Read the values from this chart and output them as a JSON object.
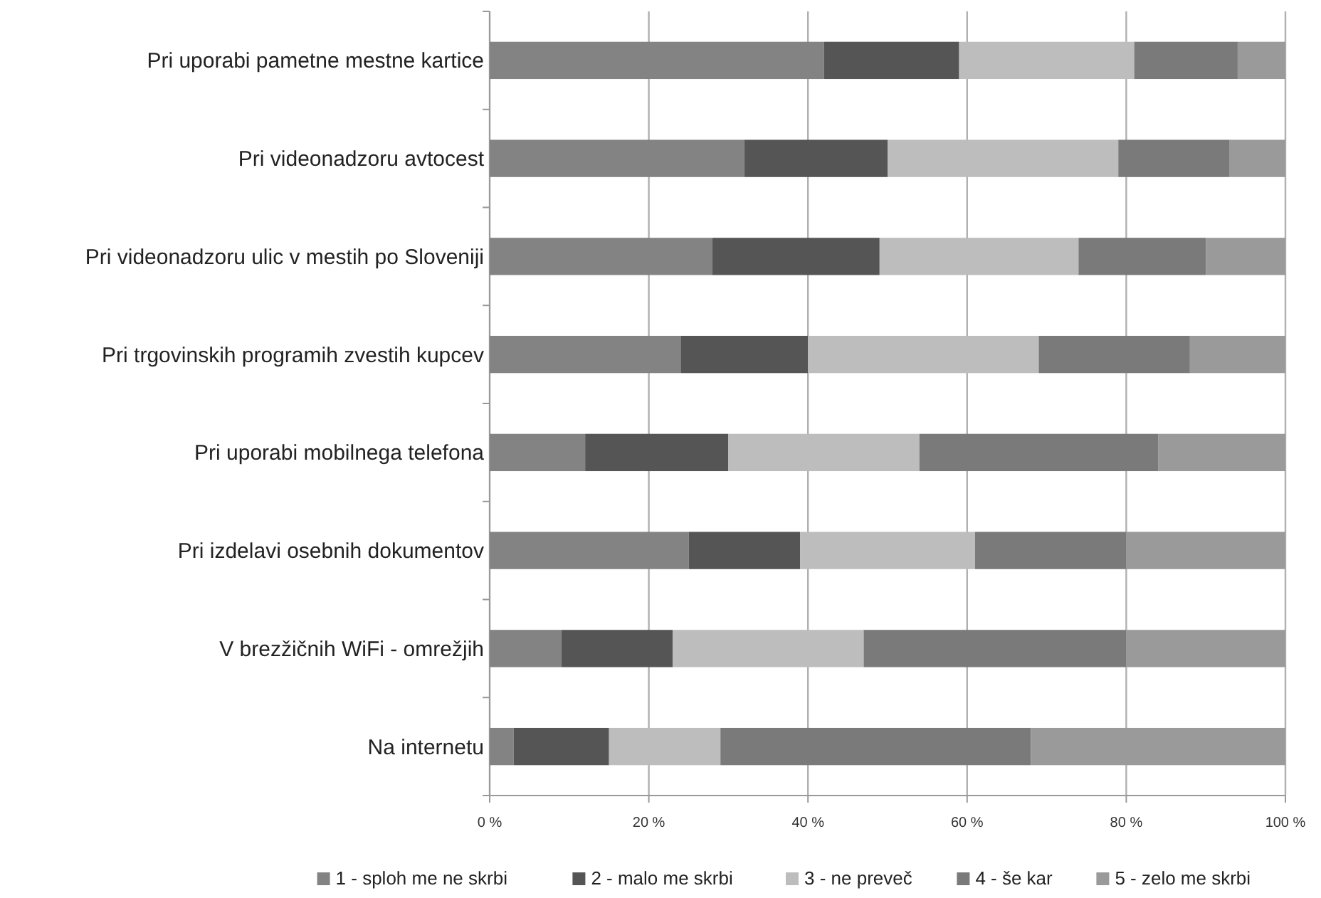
{
  "chart_data": {
    "type": "bar",
    "orientation": "horizontal",
    "stacked": true,
    "categories": [
      "Pri uporabi pametne mestne kartice",
      "Pri videonadzoru avtocest",
      "Pri videonadzoru ulic v mestih po Sloveniji",
      "Pri trgovinskih programih zvestih kupcev",
      "Pri uporabi mobilnega telefona",
      "Pri izdelavi osebnih dokumentov",
      "V brezžičnih WiFi - omrežjih",
      "Na internetu"
    ],
    "series": [
      {
        "name": "1 - sploh me ne skrbi",
        "color": "#838383",
        "values": [
          42,
          32,
          28,
          24,
          12,
          25,
          9,
          3
        ]
      },
      {
        "name": "2 - malo me skrbi",
        "color": "#555555",
        "values": [
          17,
          18,
          21,
          16,
          18,
          14,
          14,
          12
        ]
      },
      {
        "name": "3 - ne preveč",
        "color": "#bdbdbd",
        "values": [
          22,
          29,
          25,
          29,
          24,
          22,
          24,
          14
        ]
      },
      {
        "name": "4 - še kar",
        "color": "#7a7a7a",
        "values": [
          13,
          14,
          16,
          19,
          30,
          19,
          33,
          39
        ]
      },
      {
        "name": "5 - zelo me skrbi",
        "color": "#9a9a9a",
        "values": [
          6,
          7,
          10,
          12,
          16,
          20,
          20,
          32
        ]
      }
    ],
    "xlim": [
      0,
      100
    ],
    "xticks": [
      {
        "value": 0,
        "label": "0 %"
      },
      {
        "value": 20,
        "label": "20 %"
      },
      {
        "value": 40,
        "label": "40 %"
      },
      {
        "value": 60,
        "label": "60 %"
      },
      {
        "value": 80,
        "label": "80 %"
      },
      {
        "value": 100,
        "label": "100 %"
      }
    ],
    "grid": "x",
    "legend": "bottom"
  }
}
